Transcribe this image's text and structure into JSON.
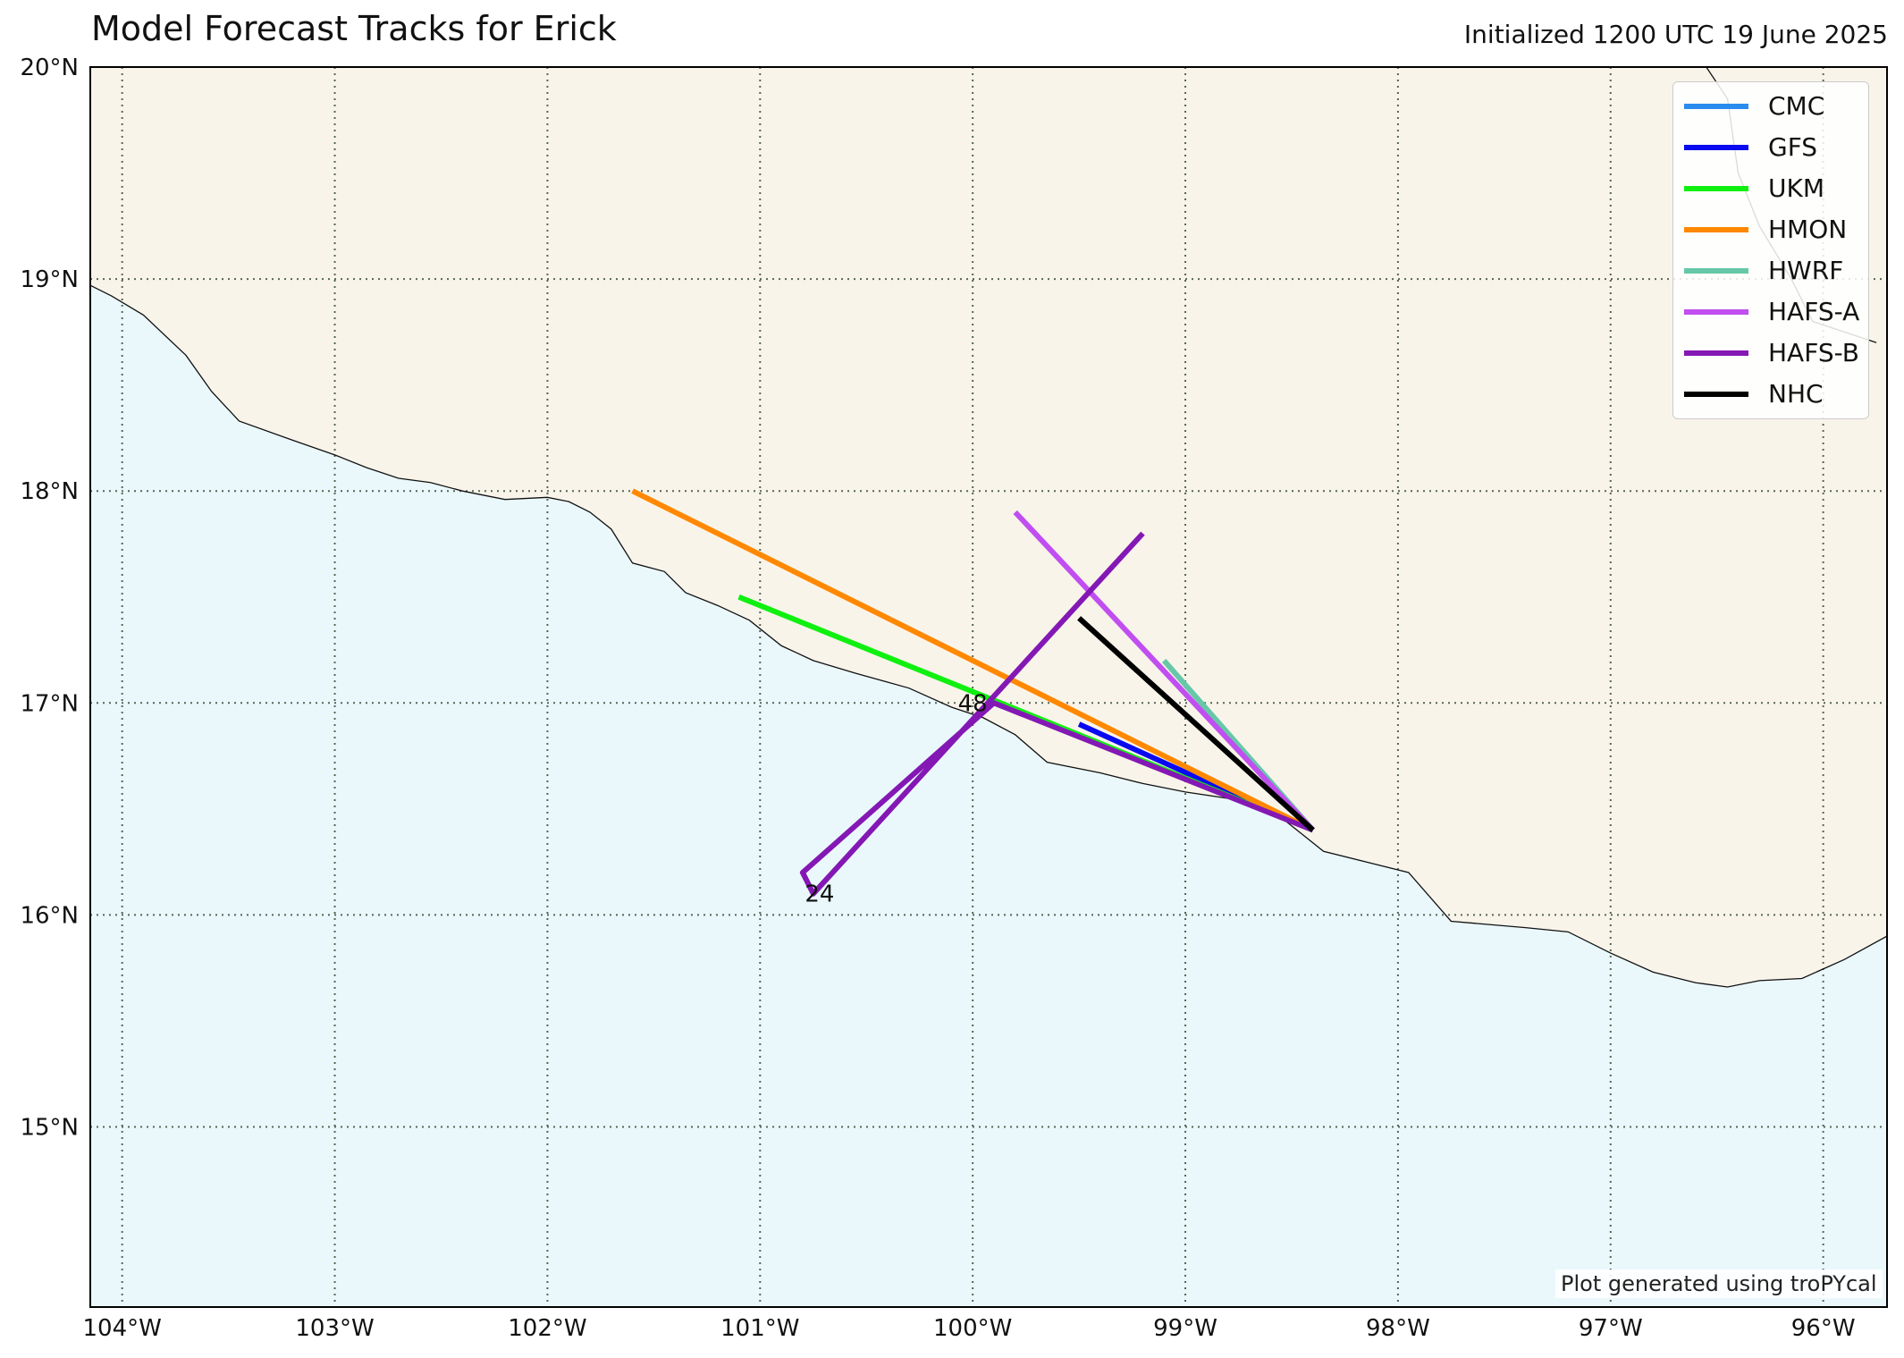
{
  "title": "Model Forecast Tracks for Erick",
  "subtitle": "Initialized 1200 UTC 19 June 2025",
  "credit": "Plot generated using troPYcal",
  "colors": {
    "ocean": "#eaf8fc",
    "land": "#f9f4ea",
    "coastline": "#111111",
    "grid": "#556655"
  },
  "map": {
    "lon_range": [
      -104.15,
      -95.7
    ],
    "lat_range": [
      14.15,
      20.0
    ],
    "lat_ticks": [
      {
        "value": 20,
        "label": "20°N"
      },
      {
        "value": 19,
        "label": "19°N"
      },
      {
        "value": 18,
        "label": "18°N"
      },
      {
        "value": 17,
        "label": "17°N"
      },
      {
        "value": 16,
        "label": "16°N"
      },
      {
        "value": 15,
        "label": "15°N"
      }
    ],
    "lon_ticks": [
      {
        "value": -104,
        "label": "104°W"
      },
      {
        "value": -103,
        "label": "103°W"
      },
      {
        "value": -102,
        "label": "102°W"
      },
      {
        "value": -101,
        "label": "101°W"
      },
      {
        "value": -100,
        "label": "100°W"
      },
      {
        "value": -99,
        "label": "99°W"
      },
      {
        "value": -98,
        "label": "98°W"
      },
      {
        "value": -97,
        "label": "97°W"
      },
      {
        "value": -96,
        "label": "96°W"
      }
    ],
    "coastline": [
      [
        -104.15,
        18.97
      ],
      [
        -104.05,
        18.92
      ],
      [
        -103.9,
        18.83
      ],
      [
        -103.7,
        18.64
      ],
      [
        -103.58,
        18.47
      ],
      [
        -103.45,
        18.33
      ],
      [
        -103.2,
        18.24
      ],
      [
        -103.0,
        18.17
      ],
      [
        -102.85,
        18.11
      ],
      [
        -102.7,
        18.06
      ],
      [
        -102.55,
        18.04
      ],
      [
        -102.4,
        18.0
      ],
      [
        -102.2,
        17.96
      ],
      [
        -102.0,
        17.97
      ],
      [
        -101.9,
        17.95
      ],
      [
        -101.8,
        17.9
      ],
      [
        -101.7,
        17.82
      ],
      [
        -101.6,
        17.66
      ],
      [
        -101.45,
        17.62
      ],
      [
        -101.35,
        17.52
      ],
      [
        -101.2,
        17.46
      ],
      [
        -101.05,
        17.39
      ],
      [
        -100.9,
        17.27
      ],
      [
        -100.75,
        17.2
      ],
      [
        -100.55,
        17.14
      ],
      [
        -100.3,
        17.07
      ],
      [
        -100.1,
        16.98
      ],
      [
        -99.95,
        16.93
      ],
      [
        -99.8,
        16.85
      ],
      [
        -99.65,
        16.72
      ],
      [
        -99.4,
        16.67
      ],
      [
        -99.2,
        16.62
      ],
      [
        -99.0,
        16.58
      ],
      [
        -98.8,
        16.55
      ],
      [
        -98.6,
        16.5
      ],
      [
        -98.45,
        16.38
      ],
      [
        -98.35,
        16.3
      ],
      [
        -98.15,
        16.25
      ],
      [
        -97.95,
        16.2
      ],
      [
        -97.75,
        15.97
      ],
      [
        -97.4,
        15.94
      ],
      [
        -97.2,
        15.92
      ],
      [
        -97.0,
        15.82
      ],
      [
        -96.8,
        15.73
      ],
      [
        -96.6,
        15.68
      ],
      [
        -96.45,
        15.66
      ],
      [
        -96.3,
        15.69
      ],
      [
        -96.1,
        15.7
      ],
      [
        -95.9,
        15.79
      ],
      [
        -95.7,
        15.9
      ]
    ],
    "coastline_ne": [
      [
        -96.55,
        20.0
      ],
      [
        -96.45,
        19.85
      ],
      [
        -96.4,
        19.5
      ],
      [
        -96.3,
        19.25
      ],
      [
        -96.15,
        19.0
      ],
      [
        -96.05,
        18.8
      ],
      [
        -95.75,
        18.7
      ]
    ]
  },
  "tracks": [
    {
      "name": "CMC",
      "color": "#2b8cf0",
      "points": []
    },
    {
      "name": "GFS",
      "color": "#0a0af0",
      "points": [
        [
          -98.4,
          16.4
        ],
        [
          -99.5,
          16.9
        ]
      ]
    },
    {
      "name": "UKM",
      "color": "#10f010",
      "points": [
        [
          -98.4,
          16.4
        ],
        [
          -99.5,
          16.85
        ],
        [
          -101.1,
          17.5
        ]
      ]
    },
    {
      "name": "HMON",
      "color": "#ff8800",
      "points": [
        [
          -98.4,
          16.4
        ],
        [
          -101.6,
          18.0
        ]
      ]
    },
    {
      "name": "HWRF",
      "color": "#66c8a8",
      "points": [
        [
          -98.4,
          16.4
        ],
        [
          -99.1,
          17.2
        ]
      ]
    },
    {
      "name": "HAFS-A",
      "color": "#c04ef0",
      "points": [
        [
          -98.4,
          16.4
        ],
        [
          -99.8,
          17.9
        ]
      ]
    },
    {
      "name": "HAFS-B",
      "color": "#8418b4",
      "points": [
        [
          -98.4,
          16.4
        ],
        [
          -99.9,
          17.0
        ],
        [
          -100.8,
          16.2
        ],
        [
          -100.75,
          16.1
        ],
        [
          -99.2,
          17.8
        ]
      ]
    },
    {
      "name": "NHC",
      "color": "#000000",
      "points": [
        [
          -98.4,
          16.4
        ],
        [
          -99.5,
          17.4
        ]
      ]
    }
  ],
  "hour_labels": [
    {
      "text": "48",
      "lon": -100.0,
      "lat": 17.0
    },
    {
      "text": "24",
      "lon": -100.72,
      "lat": 16.1
    }
  ]
}
